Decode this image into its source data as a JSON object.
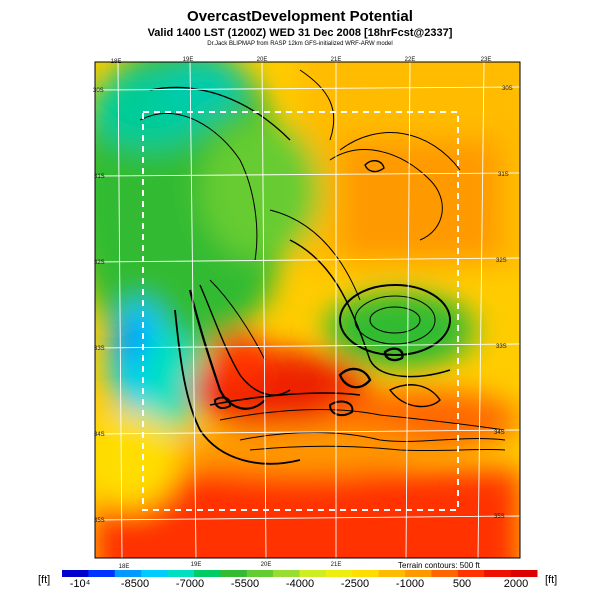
{
  "header": {
    "title": "OvercastDevelopment Potential",
    "subtitle": "Valid 1400 LST (1200Z) WED 31 Dec 2008 [18hrFcst@2337]",
    "credit": "Dr.Jack BLIPMAP from RASP 12km GFS-initialized WRF-ARW model"
  },
  "map": {
    "lon_top": [
      "18E",
      "19E",
      "20E",
      "21E",
      "22E",
      "23E"
    ],
    "lon_bottom": [
      "18E",
      "19E",
      "20E",
      "21E"
    ],
    "lat_left": [
      "30S",
      "31S",
      "32S",
      "33S",
      "34S",
      "35S"
    ],
    "lat_right": [
      "30S",
      "31S",
      "32S",
      "33S",
      "34S",
      "35S"
    ],
    "terrain_note": "Terrain contours: 500 ft"
  },
  "colorbar": {
    "unit_left": "[ft]",
    "unit_right": "[ft]",
    "labels": [
      "-10⁴",
      "-8500",
      "-7000",
      "-5500",
      "-4000",
      "-2500",
      "-1000",
      "500",
      "2000"
    ],
    "colors": [
      "#0000cc",
      "#0033ff",
      "#0099ff",
      "#00ccff",
      "#00e0c0",
      "#00cc66",
      "#33bb33",
      "#66cc33",
      "#99dd33",
      "#ccee22",
      "#eeee11",
      "#ffdd00",
      "#ffbb00",
      "#ff9900",
      "#ff6600",
      "#ff3300",
      "#ee1100",
      "#dd0000"
    ]
  }
}
